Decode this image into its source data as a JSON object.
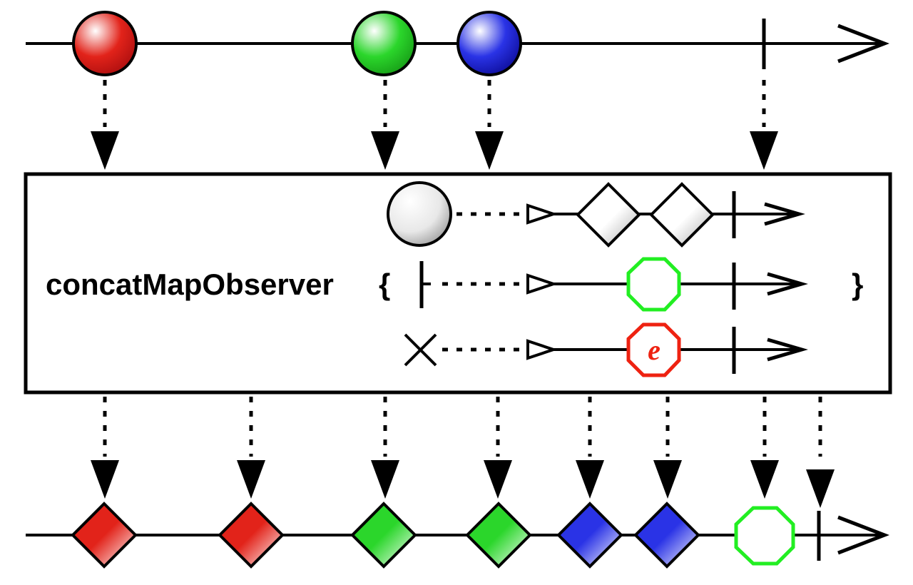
{
  "diagram": {
    "operator": {
      "name": "concatMapObserver",
      "open_brace": "{",
      "close_brace": "}"
    },
    "colors": {
      "red": "#e2231a",
      "green": "#2bd62b",
      "blue": "#2a33e6",
      "neutral": "#bdbdbd",
      "completion_octagon": "#22ee22",
      "error_octagon": "#ee2211"
    },
    "source_timeline": {
      "items": [
        "red",
        "green",
        "blue"
      ],
      "ends_with": "completion"
    },
    "inner_mappings": [
      {
        "input": "onNext",
        "input_icon": "circle-icon",
        "outputs": [
          "diamond",
          "diamond"
        ],
        "ends_with": "completion"
      },
      {
        "input": "onCompleted",
        "input_icon": "completion-bar-icon",
        "outputs": [
          "completion-octagon"
        ],
        "ends_with": "completion"
      },
      {
        "input": "onError",
        "input_icon": "error-x-icon",
        "outputs": [
          "error-octagon"
        ],
        "ends_with": "completion"
      }
    ],
    "error_symbol": "e",
    "output_timeline": {
      "items": [
        "red",
        "red",
        "green",
        "green",
        "blue",
        "blue",
        "completion-octagon"
      ],
      "ends_with": "completion"
    }
  }
}
